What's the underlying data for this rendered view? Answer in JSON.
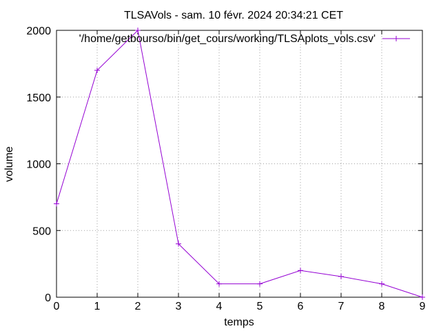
{
  "chart_data": {
    "type": "line",
    "title": "TLSAVols - sam. 10 févr. 2024 20:34:21 CET",
    "xlabel": "temps",
    "ylabel": "volume",
    "xlim": [
      0,
      9
    ],
    "ylim": [
      0,
      2000
    ],
    "x_ticks": [
      0,
      1,
      2,
      3,
      4,
      5,
      6,
      7,
      8,
      9
    ],
    "y_ticks": [
      0,
      500,
      1000,
      1500,
      2000
    ],
    "grid": true,
    "legend_position": "top-right",
    "series": [
      {
        "name": "'/home/getbourso/bin/get_cours/working/TLSAplots_vols.csv'",
        "color": "#9400d3",
        "marker": "plus",
        "x": [
          0,
          1,
          2,
          3,
          4,
          5,
          6,
          7,
          8,
          9
        ],
        "y": [
          700,
          1700,
          2000,
          400,
          100,
          100,
          200,
          155,
          100,
          0
        ]
      }
    ]
  }
}
